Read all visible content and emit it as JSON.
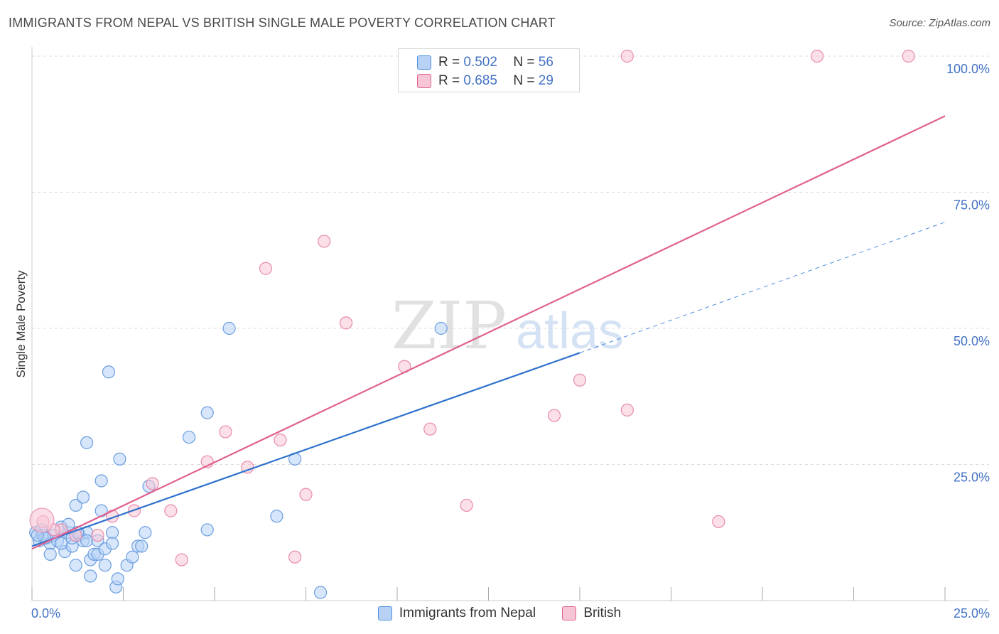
{
  "title": "IMMIGRANTS FROM NEPAL VS BRITISH SINGLE MALE POVERTY CORRELATION CHART",
  "source": "Source: ZipAtlas.com",
  "watermark": {
    "zip": "ZIP",
    "atlas": "atlas"
  },
  "legend_top": {
    "r_label": "R =",
    "n_label": "N =",
    "series": [
      {
        "r": "0.502",
        "n": "56"
      },
      {
        "r": "0.685",
        "n": "29"
      }
    ]
  },
  "colors": {
    "blue": "#4e8fe0",
    "blue_fill": "#b7d2f5",
    "pink": "#e0608f",
    "pink_fill": "#f7c6d6",
    "tick": "#4472c4"
  },
  "chart_data": {
    "type": "scatter",
    "title": "IMMIGRANTS FROM NEPAL VS BRITISH SINGLE MALE POVERTY CORRELATION CHART",
    "xlabel": "",
    "ylabel": "Single Male Poverty",
    "xlim": [
      0,
      25
    ],
    "ylim": [
      0,
      100
    ],
    "x_tick_labels": [
      "0.0%",
      "25.0%"
    ],
    "y_ticks": [
      25,
      50,
      75,
      100
    ],
    "y_tick_labels": [
      "25.0%",
      "50.0%",
      "75.0%",
      "100.0%"
    ],
    "grid": true,
    "series": [
      {
        "name": "Immigrants from Nepal",
        "color": "#4e8fe0",
        "r": 0.502,
        "n": 56,
        "trend": {
          "x": [
            0,
            15
          ],
          "y": [
            10.0,
            45.5
          ]
        },
        "trend_dashed": {
          "x": [
            15,
            25
          ],
          "y": [
            45.5,
            69.5
          ]
        },
        "points": [
          [
            0.1,
            12.5
          ],
          [
            0.2,
            11.0
          ],
          [
            0.25,
            13.0
          ],
          [
            0.3,
            12.0
          ],
          [
            0.4,
            11.5
          ],
          [
            0.5,
            10.5
          ],
          [
            0.6,
            12.0
          ],
          [
            0.5,
            8.5
          ],
          [
            0.7,
            11.0
          ],
          [
            0.8,
            13.5
          ],
          [
            0.9,
            9.0
          ],
          [
            1.0,
            12.5
          ],
          [
            1.0,
            14.0
          ],
          [
            1.1,
            10.0
          ],
          [
            1.1,
            11.5
          ],
          [
            1.2,
            17.5
          ],
          [
            1.2,
            6.5
          ],
          [
            1.3,
            12.0
          ],
          [
            1.4,
            11.0
          ],
          [
            1.4,
            19.0
          ],
          [
            1.5,
            12.5
          ],
          [
            1.5,
            11.0
          ],
          [
            1.5,
            29.0
          ],
          [
            1.6,
            4.5
          ],
          [
            1.6,
            7.5
          ],
          [
            1.7,
            8.5
          ],
          [
            1.8,
            8.5
          ],
          [
            1.8,
            11.0
          ],
          [
            1.9,
            16.5
          ],
          [
            1.9,
            22.0
          ],
          [
            2.0,
            6.5
          ],
          [
            2.0,
            9.5
          ],
          [
            2.1,
            42.0
          ],
          [
            2.2,
            12.5
          ],
          [
            2.2,
            10.5
          ],
          [
            2.3,
            2.5
          ],
          [
            2.35,
            4.0
          ],
          [
            2.4,
            26.0
          ],
          [
            2.6,
            6.5
          ],
          [
            2.75,
            8.0
          ],
          [
            2.9,
            10.0
          ],
          [
            3.0,
            10.0
          ],
          [
            3.1,
            12.5
          ],
          [
            3.2,
            21.0
          ],
          [
            4.3,
            30.0
          ],
          [
            4.8,
            34.5
          ],
          [
            4.8,
            13.0
          ],
          [
            5.4,
            50.0
          ],
          [
            6.7,
            15.5
          ],
          [
            7.2,
            26.0
          ],
          [
            7.9,
            1.5
          ],
          [
            11.2,
            50.0
          ],
          [
            0.8,
            10.5
          ],
          [
            0.35,
            11.5
          ],
          [
            1.25,
            12.5
          ],
          [
            0.15,
            12.0
          ]
        ]
      },
      {
        "name": "British",
        "color": "#e0608f",
        "r": 0.685,
        "n": 29,
        "trend": {
          "x": [
            0,
            25
          ],
          "y": [
            9.5,
            89.0
          ]
        },
        "points": [
          [
            0.3,
            14.5
          ],
          [
            0.8,
            13.0
          ],
          [
            1.2,
            12.0
          ],
          [
            1.8,
            12.0
          ],
          [
            2.2,
            15.5
          ],
          [
            2.8,
            16.5
          ],
          [
            3.3,
            21.5
          ],
          [
            3.8,
            16.5
          ],
          [
            4.1,
            7.5
          ],
          [
            4.8,
            25.5
          ],
          [
            5.3,
            31.0
          ],
          [
            5.9,
            24.5
          ],
          [
            6.4,
            61.0
          ],
          [
            6.8,
            29.5
          ],
          [
            7.2,
            8.0
          ],
          [
            7.5,
            19.5
          ],
          [
            8.0,
            66.0
          ],
          [
            8.6,
            51.0
          ],
          [
            10.2,
            43.0
          ],
          [
            10.9,
            31.5
          ],
          [
            11.9,
            17.5
          ],
          [
            14.3,
            34.0
          ],
          [
            15.0,
            40.5
          ],
          [
            16.3,
            35.0
          ],
          [
            16.3,
            100.0
          ],
          [
            18.8,
            14.5
          ],
          [
            21.5,
            100.0
          ],
          [
            24.0,
            100.0
          ],
          [
            0.6,
            13.0
          ]
        ]
      }
    ]
  }
}
